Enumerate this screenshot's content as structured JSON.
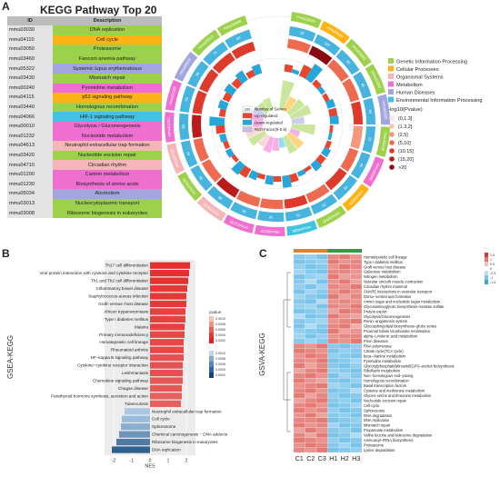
{
  "panel_labels": {
    "a": "A",
    "b": "B",
    "c": "C"
  },
  "kegg_table": {
    "title": "KEGG Pathway Top 20",
    "columns": [
      "ID",
      "Description"
    ],
    "rows": [
      {
        "id": "mmu03030",
        "desc": "DNA replication",
        "color": "#9ed14b"
      },
      {
        "id": "mmu04110",
        "desc": "Cell cycle",
        "color": "#fcb415"
      },
      {
        "id": "mmu03050",
        "desc": "Proteasome",
        "color": "#9ed14b"
      },
      {
        "id": "mmu03460",
        "desc": "Fanconi anemia pathway",
        "color": "#9ed14b"
      },
      {
        "id": "mmu05322",
        "desc": "Systemic lupus erythematosus",
        "color": "#a3a6de"
      },
      {
        "id": "mmu03430",
        "desc": "Mismatch repair",
        "color": "#9ed14b"
      },
      {
        "id": "mmu00240",
        "desc": "Pyrimidine metabolism",
        "color": "#ef6fd0"
      },
      {
        "id": "mmu04115",
        "desc": "p53 signaling pathway",
        "color": "#fcb415"
      },
      {
        "id": "mmu03440",
        "desc": "Homologous recombination",
        "color": "#9ed14b"
      },
      {
        "id": "mmu04066",
        "desc": "HIF-1 signaling pathway",
        "color": "#3ec3e0"
      },
      {
        "id": "mmu00010",
        "desc": "Glycolysis / Gluconeogenesis",
        "color": "#ef6fd0"
      },
      {
        "id": "mmu01232",
        "desc": "Nucleotide metabolism",
        "color": "#ef6fd0"
      },
      {
        "id": "mmu04613",
        "desc": "Neutrophil extracellular trap formation",
        "color": "#f4b6b6"
      },
      {
        "id": "mmu03420",
        "desc": "Nucleotide excision repair",
        "color": "#9ed14b"
      },
      {
        "id": "mmu04710",
        "desc": "Circadian rhythm",
        "color": "#f4b6b6"
      },
      {
        "id": "mmu01200",
        "desc": "Carbon metabolism",
        "color": "#ef6fd0"
      },
      {
        "id": "mmu01230",
        "desc": "Biosynthesis of amino acids",
        "color": "#ef6fd0"
      },
      {
        "id": "mmu05034",
        "desc": "Alcoholism",
        "color": "#a3a6de"
      },
      {
        "id": "mmu03013",
        "desc": "Nucleocytoplasmic transport",
        "color": "#9ed14b"
      },
      {
        "id": "mmu03008",
        "desc": "Ribosome biogenesis in eukaryotes",
        "color": "#9ed14b"
      }
    ]
  },
  "circle_legend": {
    "categories": [
      {
        "label": "Genetic Information Processing",
        "color": "#9ed14b"
      },
      {
        "label": "Cellular Processes",
        "color": "#fcb415"
      },
      {
        "label": "Organismal Systems",
        "color": "#f4b6b6"
      },
      {
        "label": "Metabolism",
        "color": "#ef6fd0"
      },
      {
        "label": "Human Diseases",
        "color": "#a3a6de"
      },
      {
        "label": "Environmental Information Processing",
        "color": "#3ec3e0"
      }
    ],
    "pvalue_title": "-log10(Pvalue)",
    "pvalue_bins": [
      {
        "label": "(0,1.3]",
        "color": "#fde4dd"
      },
      {
        "label": "(1.3,2]",
        "color": "#fbc4b3"
      },
      {
        "label": "(2,5]",
        "color": "#f7967b"
      },
      {
        "label": "(5,10]",
        "color": "#ee6a50"
      },
      {
        "label": "(10,15]",
        "color": "#de3a2c"
      },
      {
        "label": "(15,20]",
        "color": "#bc1a1c"
      },
      {
        "label": ">20",
        "color": "#8b0b12"
      }
    ],
    "inner_legend": [
      {
        "label": "Number of Genes",
        "swatch": "100",
        "color": "#ffffff"
      },
      {
        "label": "Up-regulated",
        "color": "#e8452f"
      },
      {
        "label": "Down-regulated",
        "color": "#27a7d9"
      },
      {
        "label": "Rich Factor(0-0.6)",
        "color": "#c9bfe6"
      }
    ]
  },
  "panel_b": {
    "ylabel": "GSEA-KEGG",
    "xlabel": "NES",
    "xticks": [
      -2,
      -1,
      0,
      1,
      2
    ],
    "legend_title": "pvalue",
    "legend_values": [
      "0.0010",
      "0.0008",
      "0.0006",
      "0.0004",
      "0.0002"
    ]
  },
  "panel_c": {
    "ylabel": "GSVA-KEGG",
    "columns": [
      "C1",
      "C2",
      "C3",
      "H1",
      "H2",
      "H3"
    ],
    "group_colors": [
      "#e67e22",
      "#2e9e44"
    ],
    "legend_values": [
      "1.5",
      "1",
      "0.5",
      "0",
      "-0.5",
      "-1",
      "-1.5"
    ],
    "rows": [
      "Hematopoietic cell lineage",
      "Type I diabetes mellitus",
      "Graft versus host disease",
      "Galactose metabolism",
      "Nitrogen metabolism",
      "Vascular smooth muscle contraction",
      "Circadian rhythm mammal",
      "SNARE interactions in vesicular transport",
      "Dorso−ventral axis formation",
      "Amino sugar and nucleotide sugar metabolism",
      "Glycosaminoglycan biosynthesis−keratan sulfate",
      "Protein export",
      "Glycolysis/Gluconeogenesis",
      "Renin−angiotensin system",
      "Glycosphingolipid biosynthesis−globo series",
      "Proximal tubule bicarbonate reclamation",
      "alpha−Linolenic acid metabolism",
      "Prion diseases",
      "RNA polymerase",
      "Citrate cycle(TCA cycle)",
      "beta−Alanine metabolism",
      "Pyrimidine metabolism",
      "Glycosylphosphatidylinositol(GPI)−anchor biosynthesis",
      "Riboflavin metabolism",
      "Non−homologous end−joining",
      "Homologous recombination",
      "Basal transcription factors",
      "Cysteine and methionine metabolism",
      "Glycine serine and threonine metabolism",
      "Nucleotide excision repair",
      "Cell cycle",
      "Spliceosome",
      "RNA degradation",
      "DNA replication",
      "Mismatch repair",
      "Propanoate metabolism",
      "Valine leucine and isoleucine degradation",
      "Aminoacyl−tRNA biosynthesis",
      "Proteasome",
      "Lysine degradation"
    ]
  },
  "chart_data": [
    {
      "type": "circular-bar",
      "description_source": "KEGG Pathway Top 20 circos plot",
      "ids": [
        "mmu03030",
        "mmu04110",
        "mmu03050",
        "mmu03460",
        "mmu05322",
        "mmu03430",
        "mmu00240",
        "mmu04115",
        "mmu03440",
        "mmu04066",
        "mmu00010",
        "mmu01232",
        "mmu04613",
        "mmu03420",
        "mmu04710",
        "mmu01200",
        "mmu01230",
        "mmu05034",
        "mmu03013",
        "mmu03008"
      ],
      "gene_number": [
        33,
        110,
        38,
        45,
        60,
        22,
        45,
        55,
        28,
        70,
        50,
        45,
        80,
        38,
        40,
        90,
        55,
        65,
        70,
        60
      ],
      "up_regulated": [
        18,
        30,
        15,
        12,
        20,
        8,
        12,
        18,
        9,
        20,
        14,
        12,
        25,
        10,
        12,
        22,
        15,
        18,
        20,
        16
      ],
      "down_regulated": [
        10,
        45,
        12,
        20,
        22,
        8,
        18,
        22,
        12,
        30,
        22,
        20,
        30,
        15,
        16,
        38,
        22,
        25,
        28,
        24
      ],
      "rich_factor": [
        0.5,
        0.25,
        0.3,
        0.35,
        0.2,
        0.4,
        0.15,
        0.3,
        0.3,
        0.15,
        0.2,
        0.25,
        0.2,
        0.3,
        0.3,
        0.15,
        0.2,
        0.2,
        0.18,
        0.2
      ]
    },
    {
      "type": "bar",
      "orientation": "horizontal",
      "categories": [
        "Th17 cell differentiation",
        "Viral protein interaction with cytokine and cytokine receptor",
        "Th1 and Th2 cell differentiation",
        "Inflammatory bowel disease",
        "Staphylococcus aureus infection",
        "Graft−versus−host disease",
        "African trypanosomiasis",
        "Type I diabetes mellitus",
        "Malaria",
        "Primary immunodeficiency",
        "Hematopoietic cell lineage",
        "Rheumatoid arthritis",
        "NF−kappa B signaling pathway",
        "Cytokine−cytokine receptor interaction",
        "Leishmaniasis",
        "Chemokine signaling pathway",
        "Chagas disease",
        "Parathyroid hormone synthesis, secretion and action",
        "Tuberculosis",
        "Neutrophil extracellular trap formation",
        "Cell cycle",
        "Spliceosome",
        "Chemical carcinogenesis − DNA adducts",
        "Ribosome biogenesis in eukaryotes",
        "DNA replication"
      ],
      "values": [
        2.2,
        2.15,
        2.1,
        2.05,
        2.0,
        2.0,
        1.95,
        1.95,
        1.9,
        1.9,
        1.85,
        1.85,
        1.85,
        1.8,
        1.8,
        1.8,
        1.75,
        1.75,
        1.7,
        -1.4,
        -1.55,
        -1.6,
        -1.7,
        -1.85,
        -2.1
      ],
      "pvalues": [
        0.0001,
        0.0001,
        0.0001,
        0.0002,
        0.0002,
        0.0002,
        0.0003,
        0.0003,
        0.0003,
        0.0004,
        0.0004,
        0.0004,
        0.0005,
        0.0005,
        0.0005,
        0.0006,
        0.0006,
        0.0007,
        0.0007,
        0.001,
        0.0009,
        0.0008,
        0.0006,
        0.0004,
        0.0002
      ],
      "xlabel": "NES",
      "ylabel": "GSEA-KEGG",
      "xlim": [
        -2.5,
        2.5
      ]
    },
    {
      "type": "heatmap",
      "columns": [
        "C1",
        "C2",
        "C3",
        "H1",
        "H2",
        "H3"
      ],
      "values": [
        [
          -0.9,
          -0.8,
          -1.0,
          0.9,
          1.0,
          0.8
        ],
        [
          -1.0,
          -0.9,
          -0.8,
          1.0,
          0.8,
          0.9
        ],
        [
          -0.8,
          -1.0,
          -0.9,
          0.8,
          1.0,
          0.9
        ],
        [
          -0.7,
          -0.9,
          -1.0,
          0.9,
          0.9,
          0.8
        ],
        [
          -1.0,
          -0.8,
          -0.7,
          1.0,
          0.7,
          0.8
        ],
        [
          -0.9,
          -0.6,
          -1.0,
          0.8,
          1.0,
          0.7
        ],
        [
          -0.8,
          -1.0,
          -0.7,
          0.9,
          0.8,
          1.0
        ],
        [
          -1.0,
          -0.7,
          -0.9,
          0.8,
          1.0,
          0.8
        ],
        [
          -0.7,
          -0.9,
          -1.0,
          1.0,
          0.7,
          0.9
        ],
        [
          -0.9,
          -1.0,
          -0.6,
          0.8,
          0.9,
          0.8
        ],
        [
          -0.8,
          -0.7,
          -1.0,
          0.9,
          0.8,
          1.0
        ],
        [
          -1.0,
          -0.9,
          -0.8,
          0.7,
          1.0,
          0.9
        ],
        [
          -0.6,
          -1.0,
          -0.9,
          1.0,
          0.8,
          0.7
        ],
        [
          -0.9,
          -0.8,
          -0.7,
          0.8,
          0.9,
          1.0
        ],
        [
          -1.0,
          -0.6,
          -0.9,
          0.9,
          1.0,
          0.6
        ],
        [
          -0.8,
          -0.9,
          -1.0,
          1.0,
          0.7,
          0.8
        ],
        [
          -0.7,
          -1.0,
          -0.8,
          0.8,
          0.9,
          0.9
        ],
        [
          -0.9,
          -0.7,
          -0.9,
          0.9,
          0.8,
          1.0
        ],
        [
          0.9,
          0.8,
          1.0,
          -0.9,
          -1.0,
          -0.8
        ],
        [
          1.0,
          0.9,
          0.8,
          -1.0,
          -0.8,
          -0.9
        ],
        [
          0.8,
          1.0,
          0.9,
          -0.8,
          -0.9,
          -1.0
        ],
        [
          0.9,
          0.8,
          1.0,
          -1.0,
          -0.9,
          -0.7
        ],
        [
          1.0,
          0.7,
          0.9,
          -0.9,
          -1.0,
          -0.8
        ],
        [
          0.7,
          0.9,
          1.0,
          -0.8,
          -0.9,
          -1.0
        ],
        [
          0.9,
          1.0,
          0.8,
          -1.0,
          -0.7,
          -0.9
        ],
        [
          1.0,
          0.8,
          0.7,
          -0.9,
          -1.0,
          -0.8
        ],
        [
          0.8,
          0.9,
          1.0,
          -0.7,
          -0.8,
          -1.0
        ],
        [
          0.9,
          1.0,
          0.8,
          -1.0,
          -0.9,
          -0.6
        ],
        [
          1.0,
          0.7,
          0.9,
          -0.8,
          -1.0,
          -0.9
        ],
        [
          0.7,
          0.9,
          1.0,
          -0.9,
          -0.8,
          -1.0
        ],
        [
          0.9,
          1.0,
          0.8,
          -1.0,
          -0.9,
          -0.7
        ],
        [
          1.0,
          0.8,
          0.9,
          -0.8,
          -1.0,
          -0.9
        ],
        [
          0.8,
          1.0,
          0.7,
          -0.9,
          -0.8,
          -1.0
        ],
        [
          0.9,
          0.9,
          1.0,
          -1.0,
          -0.9,
          -0.8
        ],
        [
          1.0,
          0.8,
          0.9,
          -0.7,
          -1.0,
          -0.9
        ],
        [
          0.7,
          1.0,
          0.8,
          -0.9,
          -0.8,
          -1.0
        ],
        [
          0.9,
          0.7,
          1.0,
          -1.0,
          -0.9,
          -0.6
        ],
        [
          1.0,
          0.9,
          0.8,
          -0.8,
          -1.0,
          -0.9
        ],
        [
          0.8,
          1.0,
          0.9,
          -0.9,
          -0.7,
          -1.0
        ],
        [
          0.9,
          0.8,
          1.0,
          -1.0,
          -0.9,
          -0.8
        ]
      ]
    }
  ]
}
